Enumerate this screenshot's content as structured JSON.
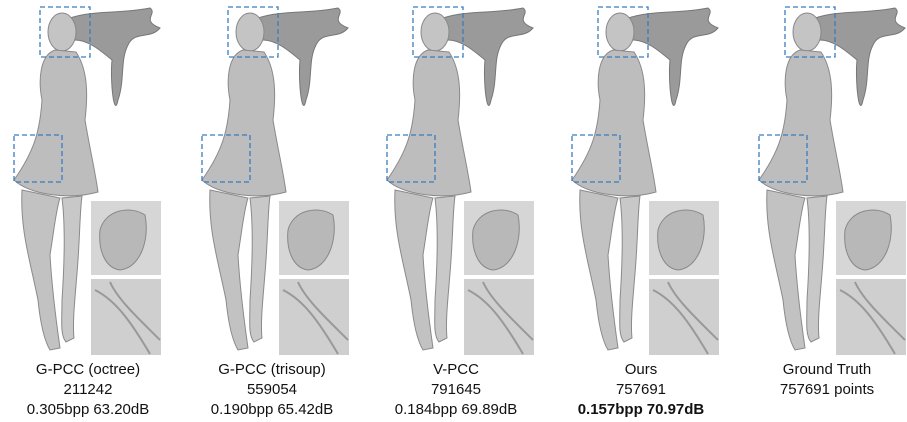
{
  "panels": [
    {
      "method": "G-PCC (octree)",
      "points": "211242",
      "rate": "0.305bpp",
      "quality": "63.20dB"
    },
    {
      "method": "G-PCC (trisoup)",
      "points": "559054",
      "rate": "0.190bpp",
      "quality": "65.42dB"
    },
    {
      "method": "V-PCC",
      "points": "791645",
      "rate": "0.184bpp",
      "quality": "69.89dB"
    },
    {
      "method": "Ours",
      "points": "757691",
      "rate": "0.157bpp",
      "quality": "70.97dB",
      "bold": true
    },
    {
      "method": "Ground Truth",
      "points": "757691 points"
    }
  ]
}
